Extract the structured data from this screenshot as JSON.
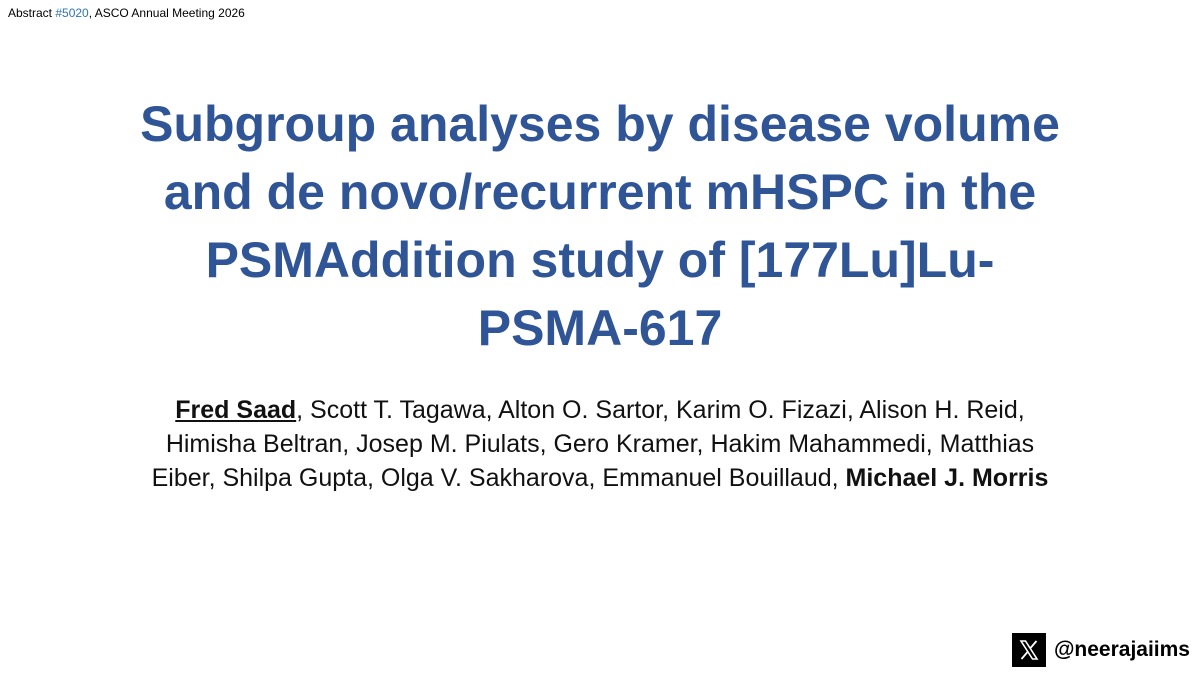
{
  "header": {
    "parts": [
      "Abstract ",
      "#5020",
      ", ASCO Annual Meeting 2026"
    ]
  },
  "title": {
    "lines": [
      "Subgroup analyses by disease volume",
      "and de novo/recurrent mHSPC in the",
      "PSMAddition study of [177Lu]Lu-",
      "PSMA-617"
    ]
  },
  "authors": {
    "first": "Fred Saad",
    "middle": ", Scott T. Tagawa, Alton O. Sartor, Karim O. Fizazi, Alison H. Reid, Himisha Beltran, Josep M. Piulats, Gero Kramer, Hakim Mahammedi, Matthias Eiber, Shilpa Gupta, Olga V. Sakharova, Emmanuel Bouillaud, ",
    "last": "Michael J. Morris"
  },
  "footer": {
    "handle": "@neerajaiims"
  }
}
